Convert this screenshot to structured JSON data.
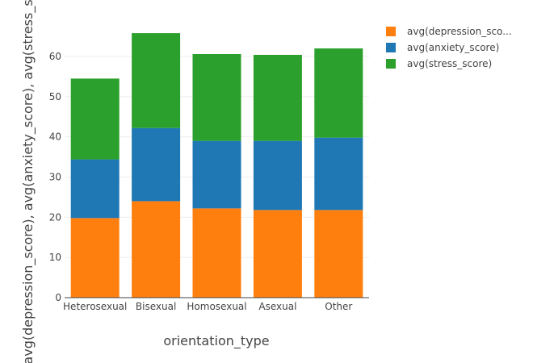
{
  "chart_data": {
    "type": "bar",
    "stacked": true,
    "categories": [
      "Heterosexual",
      "Bisexual",
      "Homosexual",
      "Asexual",
      "Other"
    ],
    "series": [
      {
        "name": "avg(depression_sco...",
        "color": "#ff7f0e",
        "values": [
          19.8,
          24.0,
          22.2,
          21.8,
          21.8
        ]
      },
      {
        "name": "avg(anxiety_score)",
        "color": "#1f77b4",
        "values": [
          14.6,
          18.2,
          16.8,
          17.2,
          18.0
        ]
      },
      {
        "name": "avg(stress_score)",
        "color": "#2ca02c",
        "values": [
          20.1,
          23.6,
          21.6,
          21.4,
          22.2
        ]
      }
    ],
    "xlabel": "orientation_type",
    "ylabel": "avg(depression_score), avg(anxiety_score), avg(stress_score)",
    "ylim": [
      0,
      70
    ],
    "yticks": [
      0,
      10,
      20,
      30,
      40,
      50,
      60
    ],
    "grid": true,
    "legend_position": "top-right"
  }
}
